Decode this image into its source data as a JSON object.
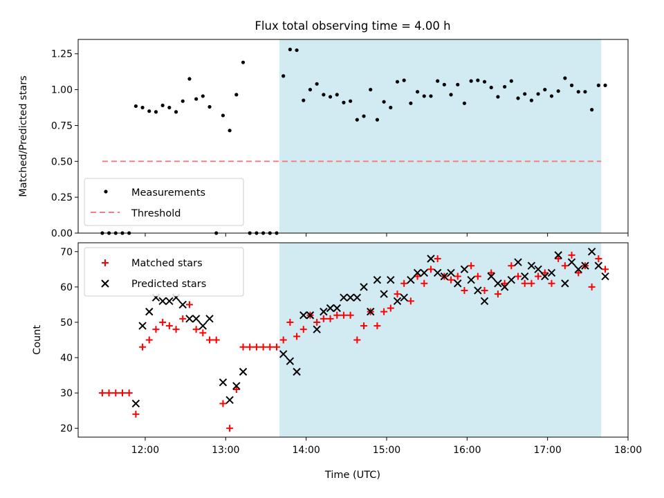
{
  "chart_data": {
    "title": "Flux total observing time = 4.00 h",
    "shade_start": "13:40",
    "shade_end": "17:40",
    "shade_color": "#add8e6",
    "x_range": [
      "11:10",
      "18:00"
    ],
    "xlabel": "Time (UTC)",
    "x_ticks": [
      "12:00",
      "13:00",
      "14:00",
      "15:00",
      "16:00",
      "17:00",
      "18:00"
    ],
    "top": {
      "type": "scatter",
      "ylabel": "Matched/Predicted stars",
      "ylim": [
        0,
        1.35
      ],
      "y_ticks": [
        "0.00",
        "0.25",
        "0.50",
        "0.75",
        "1.00",
        "1.25"
      ],
      "threshold": {
        "value": 0.5,
        "from": "11:28",
        "to": "17:40",
        "color": "#f08080"
      },
      "legend": {
        "placement": "lower-left",
        "measurements": "Measurements",
        "threshold": "Threshold"
      },
      "measurements": [
        [
          "11:28",
          0
        ],
        [
          "11:33",
          0
        ],
        [
          "11:38",
          0
        ],
        [
          "11:43",
          0
        ],
        [
          "11:48",
          0
        ],
        [
          "11:53",
          0.885
        ],
        [
          "11:58",
          0.875
        ],
        [
          "12:03",
          0.85
        ],
        [
          "12:08",
          0.845
        ],
        [
          "12:13",
          0.89
        ],
        [
          "12:18",
          0.875
        ],
        [
          "12:23",
          0.845
        ],
        [
          "12:28",
          0.92
        ],
        [
          "12:33",
          1.075
        ],
        [
          "12:38",
          0.935
        ],
        [
          "12:43",
          0.955
        ],
        [
          "12:48",
          0.88
        ],
        [
          "12:53",
          0
        ],
        [
          "12:58",
          0.82
        ],
        [
          "13:03",
          0.715
        ],
        [
          "13:08",
          0.965
        ],
        [
          "13:13",
          1.19
        ],
        [
          "13:18",
          0
        ],
        [
          "13:23",
          0
        ],
        [
          "13:28",
          0
        ],
        [
          "13:33",
          0
        ],
        [
          "13:38",
          0
        ],
        [
          "13:43",
          1.095
        ],
        [
          "13:48",
          1.28
        ],
        [
          "13:53",
          1.275
        ],
        [
          "13:58",
          0.925
        ],
        [
          "14:03",
          1.0
        ],
        [
          "14:08",
          1.04
        ],
        [
          "14:13",
          0.965
        ],
        [
          "14:18",
          0.95
        ],
        [
          "14:23",
          0.965
        ],
        [
          "14:28",
          0.91
        ],
        [
          "14:33",
          0.92
        ],
        [
          "14:38",
          0.79
        ],
        [
          "14:43",
          0.815
        ],
        [
          "14:48",
          1.0
        ],
        [
          "14:53",
          0.79
        ],
        [
          "14:58",
          0.915
        ],
        [
          "15:03",
          0.875
        ],
        [
          "15:08",
          1.055
        ],
        [
          "15:13",
          1.065
        ],
        [
          "15:18",
          0.905
        ],
        [
          "15:23",
          0.985
        ],
        [
          "15:28",
          0.955
        ],
        [
          "15:33",
          0.955
        ],
        [
          "15:38",
          1.06
        ],
        [
          "15:43",
          1.035
        ],
        [
          "15:48",
          0.965
        ],
        [
          "15:53",
          1.035
        ],
        [
          "15:58",
          0.905
        ],
        [
          "16:03",
          1.06
        ],
        [
          "16:08",
          1.065
        ],
        [
          "16:13",
          1.055
        ],
        [
          "16:18",
          1.015
        ],
        [
          "16:23",
          0.95
        ],
        [
          "16:28",
          1.02
        ],
        [
          "16:33",
          1.06
        ],
        [
          "16:38",
          0.94
        ],
        [
          "16:43",
          0.97
        ],
        [
          "16:48",
          0.925
        ],
        [
          "16:53",
          0.97
        ],
        [
          "16:58",
          1.0
        ],
        [
          "17:03",
          0.955
        ],
        [
          "17:08",
          0.99
        ],
        [
          "17:13",
          1.08
        ],
        [
          "17:18",
          1.03
        ],
        [
          "17:23",
          0.985
        ],
        [
          "17:28",
          0.985
        ],
        [
          "17:33",
          0.86
        ],
        [
          "17:38",
          1.03
        ],
        [
          "17:43",
          1.03
        ]
      ]
    },
    "bottom": {
      "type": "scatter",
      "ylabel": "Count",
      "ylim": [
        17.5,
        72.5
      ],
      "y_ticks": [
        "20",
        "30",
        "40",
        "50",
        "60",
        "70"
      ],
      "legend": {
        "placement": "upper-left",
        "matched": "Matched stars",
        "predicted": "Predicted stars"
      },
      "matched_color": "#ff0000",
      "predicted_color": "#000000",
      "matched": [
        [
          "11:28",
          30
        ],
        [
          "11:33",
          30
        ],
        [
          "11:38",
          30
        ],
        [
          "11:43",
          30
        ],
        [
          "11:48",
          30
        ],
        [
          "11:53",
          24
        ],
        [
          "11:58",
          43
        ],
        [
          "12:03",
          45
        ],
        [
          "12:08",
          48
        ],
        [
          "12:13",
          50
        ],
        [
          "12:18",
          49
        ],
        [
          "12:23",
          48
        ],
        [
          "12:28",
          51
        ],
        [
          "12:33",
          55
        ],
        [
          "12:38",
          48
        ],
        [
          "12:43",
          47
        ],
        [
          "12:48",
          45
        ],
        [
          "12:53",
          45
        ],
        [
          "12:58",
          27
        ],
        [
          "13:03",
          20
        ],
        [
          "13:08",
          31
        ],
        [
          "13:13",
          43
        ],
        [
          "13:18",
          43
        ],
        [
          "13:23",
          43
        ],
        [
          "13:28",
          43
        ],
        [
          "13:33",
          43
        ],
        [
          "13:38",
          43
        ],
        [
          "13:43",
          45
        ],
        [
          "13:48",
          50
        ],
        [
          "13:53",
          46
        ],
        [
          "13:58",
          48
        ],
        [
          "14:03",
          52
        ],
        [
          "14:08",
          50
        ],
        [
          "14:13",
          51
        ],
        [
          "14:18",
          51
        ],
        [
          "14:23",
          52
        ],
        [
          "14:28",
          52
        ],
        [
          "14:33",
          52
        ],
        [
          "14:38",
          45
        ],
        [
          "14:43",
          49
        ],
        [
          "14:48",
          53
        ],
        [
          "14:53",
          49
        ],
        [
          "14:58",
          53
        ],
        [
          "15:03",
          54
        ],
        [
          "15:08",
          58
        ],
        [
          "15:13",
          61
        ],
        [
          "15:18",
          56
        ],
        [
          "15:23",
          63
        ],
        [
          "15:28",
          61
        ],
        [
          "15:33",
          65
        ],
        [
          "15:38",
          68
        ],
        [
          "15:43",
          63
        ],
        [
          "15:48",
          62
        ],
        [
          "15:53",
          63
        ],
        [
          "15:58",
          59
        ],
        [
          "16:03",
          66
        ],
        [
          "16:08",
          63
        ],
        [
          "16:13",
          59
        ],
        [
          "16:18",
          64
        ],
        [
          "16:23",
          58
        ],
        [
          "16:28",
          61
        ],
        [
          "16:33",
          66
        ],
        [
          "16:38",
          63
        ],
        [
          "16:43",
          61
        ],
        [
          "16:48",
          61
        ],
        [
          "16:53",
          63
        ],
        [
          "16:58",
          64
        ],
        [
          "17:03",
          61
        ],
        [
          "17:08",
          68
        ],
        [
          "17:13",
          66
        ],
        [
          "17:18",
          69
        ],
        [
          "17:23",
          64
        ],
        [
          "17:28",
          66
        ],
        [
          "17:33",
          60
        ],
        [
          "17:38",
          68
        ],
        [
          "17:43",
          65
        ]
      ],
      "predicted": [
        [
          "11:53",
          27
        ],
        [
          "11:58",
          49
        ],
        [
          "12:03",
          53
        ],
        [
          "12:08",
          57
        ],
        [
          "12:13",
          56
        ],
        [
          "12:18",
          56
        ],
        [
          "12:23",
          57
        ],
        [
          "12:28",
          55
        ],
        [
          "12:33",
          51
        ],
        [
          "12:38",
          51
        ],
        [
          "12:43",
          49
        ],
        [
          "12:48",
          51
        ],
        [
          "12:58",
          33
        ],
        [
          "13:03",
          28
        ],
        [
          "13:08",
          32
        ],
        [
          "13:13",
          36
        ],
        [
          "13:43",
          41
        ],
        [
          "13:48",
          39
        ],
        [
          "13:53",
          36
        ],
        [
          "13:58",
          52
        ],
        [
          "14:03",
          52
        ],
        [
          "14:08",
          48
        ],
        [
          "14:13",
          53
        ],
        [
          "14:18",
          54
        ],
        [
          "14:23",
          54
        ],
        [
          "14:28",
          57
        ],
        [
          "14:33",
          57
        ],
        [
          "14:38",
          57
        ],
        [
          "14:43",
          60
        ],
        [
          "14:48",
          53
        ],
        [
          "14:53",
          62
        ],
        [
          "14:58",
          58
        ],
        [
          "15:03",
          62
        ],
        [
          "15:08",
          56
        ],
        [
          "15:13",
          57
        ],
        [
          "15:18",
          62
        ],
        [
          "15:23",
          64
        ],
        [
          "15:28",
          64
        ],
        [
          "15:33",
          68
        ],
        [
          "15:38",
          64
        ],
        [
          "15:43",
          63
        ],
        [
          "15:48",
          64
        ],
        [
          "15:53",
          61
        ],
        [
          "15:58",
          65
        ],
        [
          "16:03",
          62
        ],
        [
          "16:08",
          59
        ],
        [
          "16:13",
          56
        ],
        [
          "16:18",
          63
        ],
        [
          "16:23",
          61
        ],
        [
          "16:28",
          60
        ],
        [
          "16:33",
          62
        ],
        [
          "16:38",
          67
        ],
        [
          "16:43",
          63
        ],
        [
          "16:48",
          66
        ],
        [
          "16:53",
          65
        ],
        [
          "16:58",
          63
        ],
        [
          "17:03",
          64
        ],
        [
          "17:08",
          69
        ],
        [
          "17:13",
          61
        ],
        [
          "17:18",
          67
        ],
        [
          "17:23",
          65
        ],
        [
          "17:28",
          66
        ],
        [
          "17:33",
          70
        ],
        [
          "17:38",
          66
        ],
        [
          "17:43",
          63
        ]
      ]
    }
  }
}
